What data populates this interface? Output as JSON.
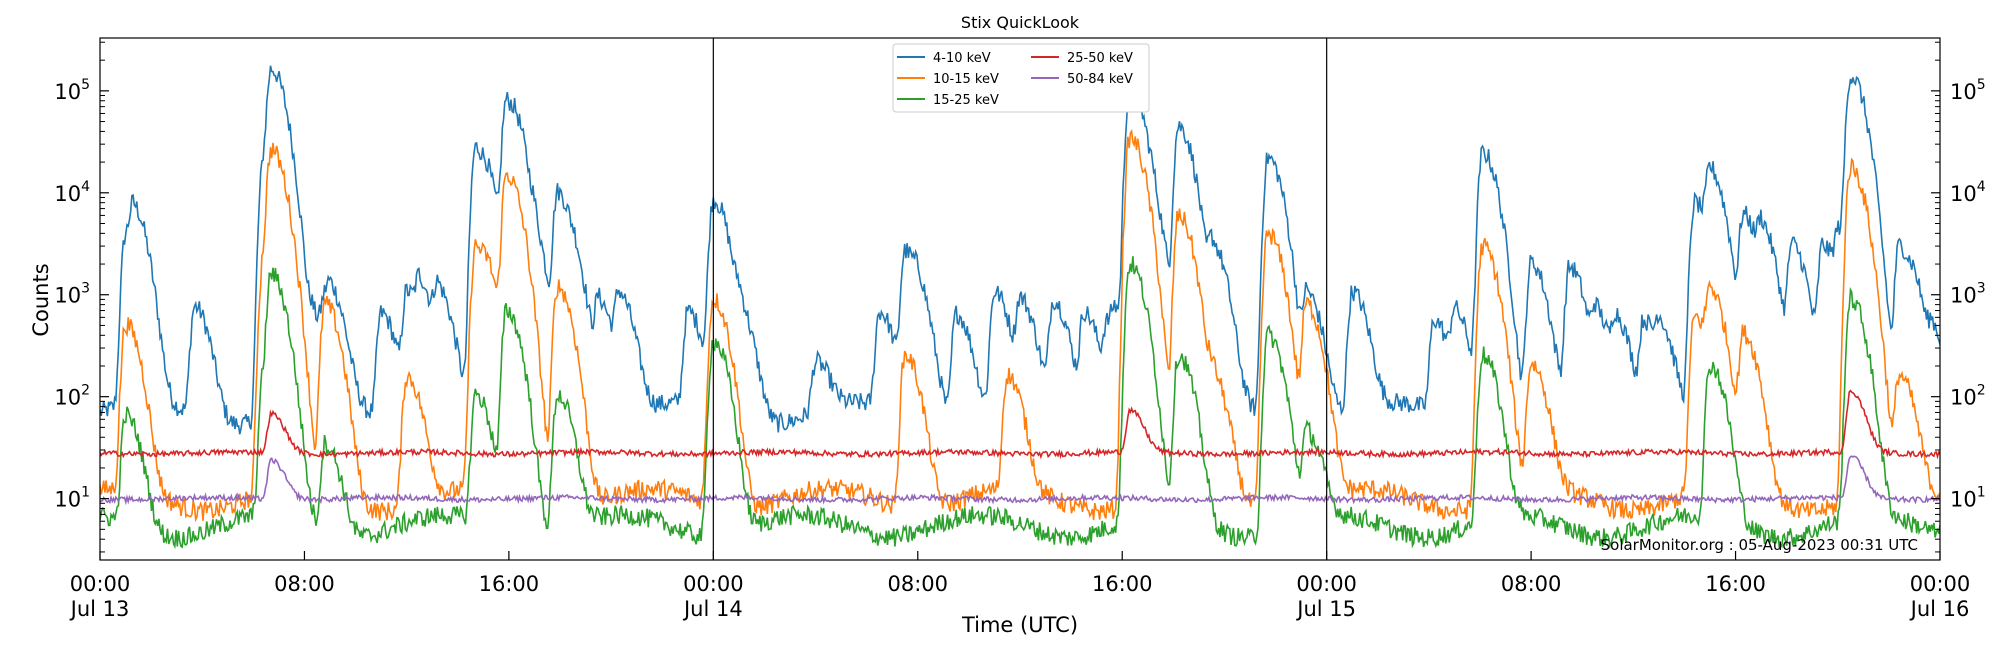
{
  "chart_data": {
    "type": "line",
    "title": "Stix QuickLook",
    "xlabel": "Time (UTC)",
    "ylabel": "Counts",
    "yscale": "log",
    "ylim": [
      2.5,
      330000
    ],
    "xlim_hours": [
      0,
      72
    ],
    "y_ticks": [
      {
        "value": 10,
        "base": "10",
        "exp": "1"
      },
      {
        "value": 100,
        "base": "10",
        "exp": "2"
      },
      {
        "value": 1000,
        "base": "10",
        "exp": "3"
      },
      {
        "value": 10000,
        "base": "10",
        "exp": "4"
      },
      {
        "value": 100000,
        "base": "10",
        "exp": "5"
      }
    ],
    "x_ticks": [
      {
        "hour": 0,
        "line1": "00:00",
        "line2": "Jul 13"
      },
      {
        "hour": 8,
        "line1": "08:00",
        "line2": ""
      },
      {
        "hour": 16,
        "line1": "16:00",
        "line2": ""
      },
      {
        "hour": 24,
        "line1": "00:00",
        "line2": "Jul 14"
      },
      {
        "hour": 32,
        "line1": "08:00",
        "line2": ""
      },
      {
        "hour": 40,
        "line1": "16:00",
        "line2": ""
      },
      {
        "hour": 48,
        "line1": "00:00",
        "line2": "Jul 15"
      },
      {
        "hour": 56,
        "line1": "08:00",
        "line2": ""
      },
      {
        "hour": 64,
        "line1": "16:00",
        "line2": ""
      },
      {
        "hour": 72,
        "line1": "00:00",
        "line2": "Jul 16"
      }
    ],
    "day_boundaries_hours": [
      24,
      48
    ],
    "grid": false,
    "legend_position": "top-center",
    "legend_columns": 2,
    "credit": "SolarMonitor.org : 05-Aug-2023 00:31 UTC",
    "series": [
      {
        "name": "4-10 keV",
        "color": "#1f77b4",
        "baseline": 70,
        "peaks": [
          [
            1.0,
            3000
          ],
          [
            1.3,
            5000
          ],
          [
            1.0,
            700
          ],
          [
            3.7,
            700
          ],
          [
            6.4,
            20000
          ],
          [
            6.7,
            150000
          ],
          [
            8.3,
            500
          ],
          [
            8.8,
            600
          ],
          [
            9.0,
            600
          ],
          [
            11.0,
            600
          ],
          [
            12.0,
            1000
          ],
          [
            12.5,
            1000
          ],
          [
            13.2,
            1000
          ],
          [
            14.7,
            28000
          ],
          [
            15.2,
            3000
          ],
          [
            15.9,
            80000
          ],
          [
            16.3,
            8000
          ],
          [
            17.0,
            2000
          ],
          [
            17.9,
            10000
          ],
          [
            18.6,
            800
          ],
          [
            19.5,
            800
          ],
          [
            20.3,
            900
          ],
          [
            23.0,
            600
          ],
          [
            24.0,
            8500
          ],
          [
            25.0,
            600
          ],
          [
            28.0,
            150
          ],
          [
            30.5,
            600
          ],
          [
            31.5,
            2600
          ],
          [
            32.0,
            500
          ],
          [
            33.5,
            600
          ],
          [
            35.0,
            1000
          ],
          [
            36.0,
            800
          ],
          [
            37.3,
            800
          ],
          [
            38.5,
            600
          ],
          [
            39.4,
            400
          ],
          [
            39.7,
            400
          ],
          [
            40.3,
            110000
          ],
          [
            41.2,
            3500
          ],
          [
            42.2,
            45000
          ],
          [
            43.5,
            3000
          ],
          [
            45.7,
            22000
          ],
          [
            47.2,
            1000
          ],
          [
            49.0,
            1000
          ],
          [
            52.2,
            500
          ],
          [
            53.0,
            600
          ],
          [
            54.1,
            25000
          ],
          [
            56.0,
            2000
          ],
          [
            57.5,
            1800
          ],
          [
            58.5,
            600
          ],
          [
            59.3,
            500
          ],
          [
            60.4,
            500
          ],
          [
            61.0,
            400
          ],
          [
            62.4,
            8000
          ],
          [
            63.0,
            15000
          ],
          [
            64.3,
            6000
          ],
          [
            65.0,
            4000
          ],
          [
            66.2,
            3000
          ],
          [
            67.4,
            3000
          ],
          [
            68.0,
            2500
          ],
          [
            68.1,
            1000
          ],
          [
            68.5,
            7000
          ],
          [
            68.5,
            8000
          ],
          [
            68.5,
            125000
          ],
          [
            70.4,
            3000
          ],
          [
            71.0,
            500
          ],
          [
            71.7,
            300
          ]
        ]
      },
      {
        "name": "10-15 keV",
        "color": "#ff7f0e",
        "baseline": 10,
        "peaks": [
          [
            1.0,
            500
          ],
          [
            6.4,
            2200
          ],
          [
            6.7,
            25000
          ],
          [
            8.8,
            800
          ],
          [
            12.0,
            150
          ],
          [
            14.7,
            3000
          ],
          [
            15.2,
            600
          ],
          [
            15.9,
            15000
          ],
          [
            17.9,
            1200
          ],
          [
            24.0,
            900
          ],
          [
            31.5,
            250
          ],
          [
            35.5,
            150
          ],
          [
            40.3,
            35000
          ],
          [
            42.2,
            6000
          ],
          [
            43.5,
            150
          ],
          [
            45.7,
            4000
          ],
          [
            47.2,
            800
          ],
          [
            54.1,
            3000
          ],
          [
            56.0,
            200
          ],
          [
            62.4,
            600
          ],
          [
            63.0,
            1000
          ],
          [
            64.3,
            400
          ],
          [
            68.5,
            18000
          ],
          [
            70.4,
            150
          ]
        ]
      },
      {
        "name": "15-25 keV",
        "color": "#2ca02c",
        "baseline": 5.5,
        "peaks": [
          [
            1.0,
            60
          ],
          [
            6.4,
            150
          ],
          [
            6.7,
            1500
          ],
          [
            8.8,
            30
          ],
          [
            14.7,
            100
          ],
          [
            15.9,
            700
          ],
          [
            17.9,
            100
          ],
          [
            24.0,
            350
          ],
          [
            40.3,
            2000
          ],
          [
            42.2,
            250
          ],
          [
            45.7,
            400
          ],
          [
            47.2,
            40
          ],
          [
            54.1,
            250
          ],
          [
            63.0,
            200
          ],
          [
            68.5,
            900
          ]
        ]
      },
      {
        "name": "25-50 keV",
        "color": "#d62728",
        "baseline": 28,
        "peaks": [
          [
            6.7,
            40
          ],
          [
            40.3,
            45
          ],
          [
            68.5,
            85
          ]
        ]
      },
      {
        "name": "50-84 keV",
        "color": "#9467bd",
        "baseline": 10,
        "peaks": [
          [
            6.7,
            14
          ],
          [
            68.5,
            16
          ]
        ]
      }
    ]
  }
}
